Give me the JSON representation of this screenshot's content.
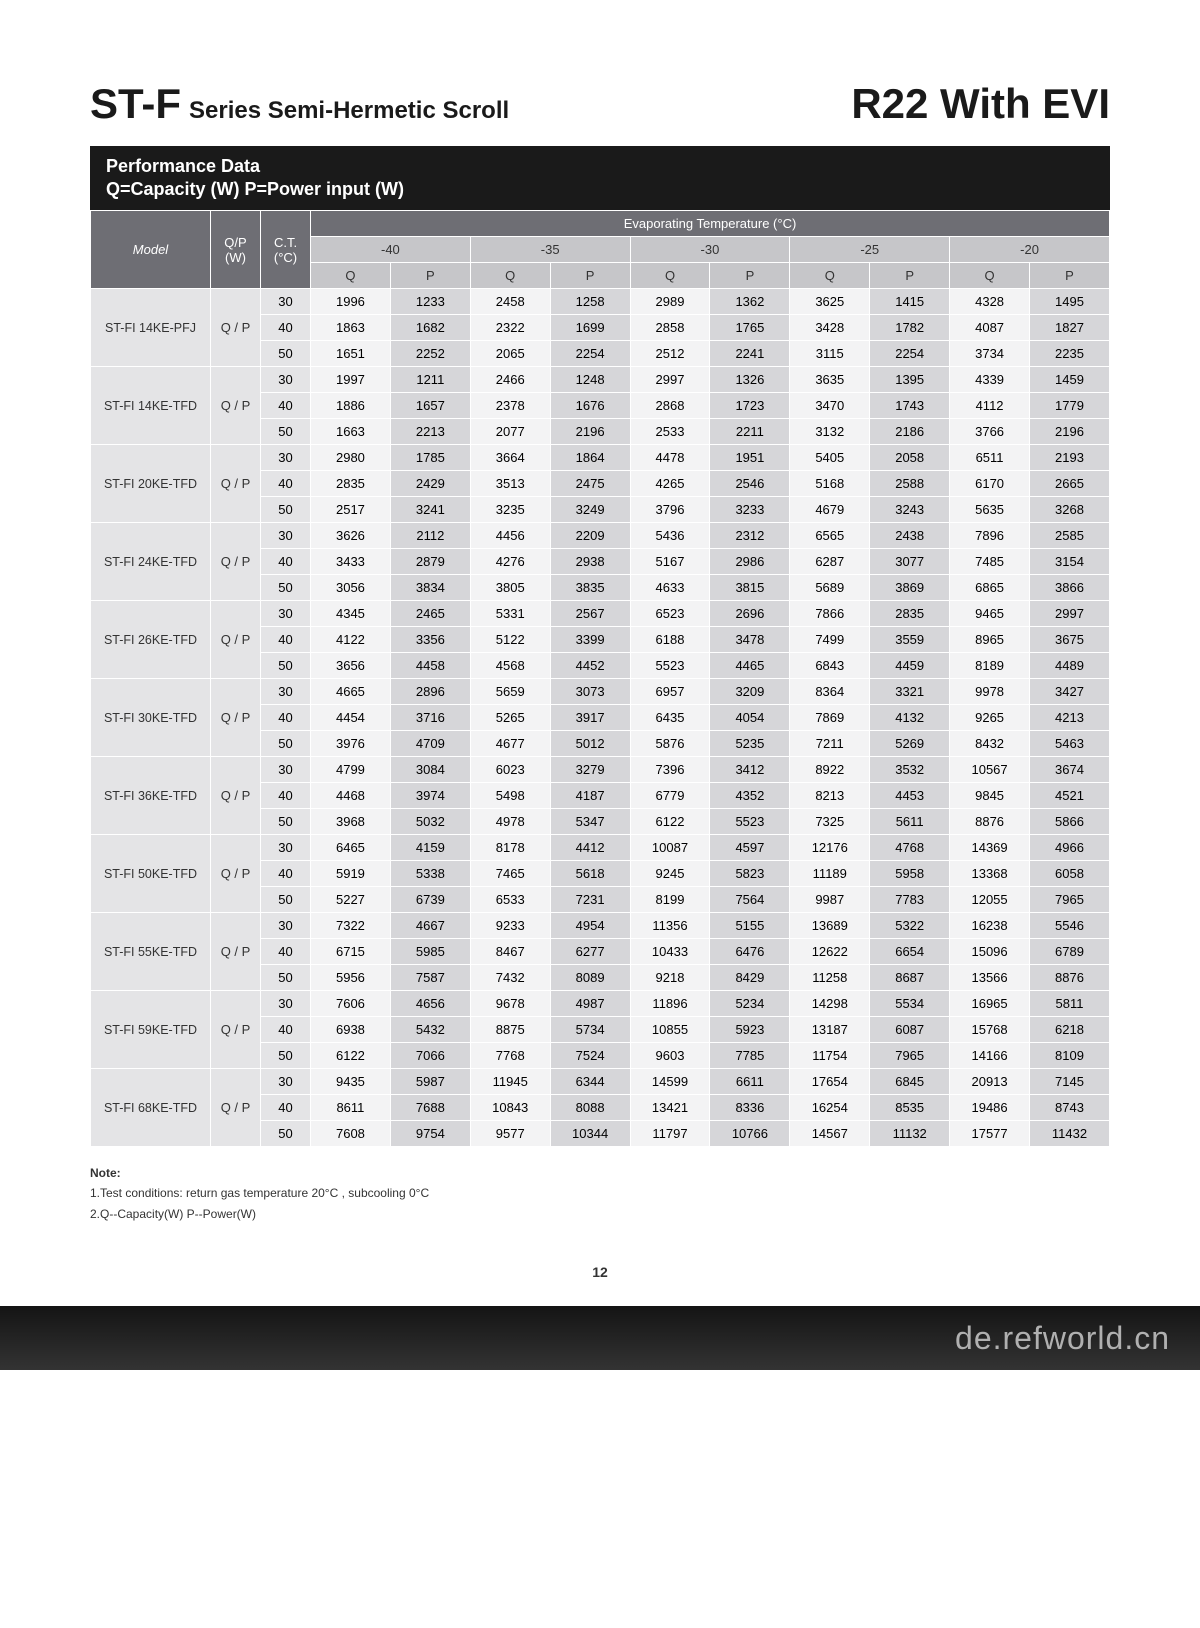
{
  "header": {
    "title_prefix": "ST-F",
    "title_suffix": "Series Semi-Hermetic Scroll",
    "title_right": "R22 With EVI"
  },
  "bar": {
    "line1": "Performance Data",
    "line2": "Q=Capacity (W) P=Power input (W)"
  },
  "table": {
    "model_header": "Model",
    "qp_header": "Q/P\n(W)",
    "ct_header": "C.T.\n(°C)",
    "evap_header": "Evaporating Temperature (°C)",
    "temps": [
      "-40",
      "-35",
      "-30",
      "-25",
      "-20"
    ],
    "qp_sub": [
      "Q",
      "P"
    ],
    "ct_values": [
      "30",
      "40",
      "50"
    ],
    "qp_cell": "Q / P",
    "models": [
      {
        "name": "ST-FI 14KE-PFJ",
        "rows": [
          [
            1996,
            1233,
            2458,
            1258,
            2989,
            1362,
            3625,
            1415,
            4328,
            1495
          ],
          [
            1863,
            1682,
            2322,
            1699,
            2858,
            1765,
            3428,
            1782,
            4087,
            1827
          ],
          [
            1651,
            2252,
            2065,
            2254,
            2512,
            2241,
            3115,
            2254,
            3734,
            2235
          ]
        ]
      },
      {
        "name": "ST-FI 14KE-TFD",
        "rows": [
          [
            1997,
            1211,
            2466,
            1248,
            2997,
            1326,
            3635,
            1395,
            4339,
            1459
          ],
          [
            1886,
            1657,
            2378,
            1676,
            2868,
            1723,
            3470,
            1743,
            4112,
            1779
          ],
          [
            1663,
            2213,
            2077,
            2196,
            2533,
            2211,
            3132,
            2186,
            3766,
            2196
          ]
        ]
      },
      {
        "name": "ST-FI 20KE-TFD",
        "rows": [
          [
            2980,
            1785,
            3664,
            1864,
            4478,
            1951,
            5405,
            2058,
            6511,
            2193
          ],
          [
            2835,
            2429,
            3513,
            2475,
            4265,
            2546,
            5168,
            2588,
            6170,
            2665
          ],
          [
            2517,
            3241,
            3235,
            3249,
            3796,
            3233,
            4679,
            3243,
            5635,
            3268
          ]
        ]
      },
      {
        "name": "ST-FI 24KE-TFD",
        "rows": [
          [
            3626,
            2112,
            4456,
            2209,
            5436,
            2312,
            6565,
            2438,
            7896,
            2585
          ],
          [
            3433,
            2879,
            4276,
            2938,
            5167,
            2986,
            6287,
            3077,
            7485,
            3154
          ],
          [
            3056,
            3834,
            3805,
            3835,
            4633,
            3815,
            5689,
            3869,
            6865,
            3866
          ]
        ]
      },
      {
        "name": "ST-FI 26KE-TFD",
        "rows": [
          [
            4345,
            2465,
            5331,
            2567,
            6523,
            2696,
            7866,
            2835,
            9465,
            2997
          ],
          [
            4122,
            3356,
            5122,
            3399,
            6188,
            3478,
            7499,
            3559,
            8965,
            3675
          ],
          [
            3656,
            4458,
            4568,
            4452,
            5523,
            4465,
            6843,
            4459,
            8189,
            4489
          ]
        ]
      },
      {
        "name": "ST-FI 30KE-TFD",
        "rows": [
          [
            4665,
            2896,
            5659,
            3073,
            6957,
            3209,
            8364,
            3321,
            9978,
            3427
          ],
          [
            4454,
            3716,
            5265,
            3917,
            6435,
            4054,
            7869,
            4132,
            9265,
            4213
          ],
          [
            3976,
            4709,
            4677,
            5012,
            5876,
            5235,
            7211,
            5269,
            8432,
            5463
          ]
        ]
      },
      {
        "name": "ST-FI 36KE-TFD",
        "rows": [
          [
            4799,
            3084,
            6023,
            3279,
            7396,
            3412,
            8922,
            3532,
            10567,
            3674
          ],
          [
            4468,
            3974,
            5498,
            4187,
            6779,
            4352,
            8213,
            4453,
            9845,
            4521
          ],
          [
            3968,
            5032,
            4978,
            5347,
            6122,
            5523,
            7325,
            5611,
            8876,
            5866
          ]
        ]
      },
      {
        "name": "ST-FI 50KE-TFD",
        "rows": [
          [
            6465,
            4159,
            8178,
            4412,
            10087,
            4597,
            12176,
            4768,
            14369,
            4966
          ],
          [
            5919,
            5338,
            7465,
            5618,
            9245,
            5823,
            11189,
            5958,
            13368,
            6058
          ],
          [
            5227,
            6739,
            6533,
            7231,
            8199,
            7564,
            9987,
            7783,
            12055,
            7965
          ]
        ]
      },
      {
        "name": "ST-FI 55KE-TFD",
        "rows": [
          [
            7322,
            4667,
            9233,
            4954,
            11356,
            5155,
            13689,
            5322,
            16238,
            5546
          ],
          [
            6715,
            5985,
            8467,
            6277,
            10433,
            6476,
            12622,
            6654,
            15096,
            6789
          ],
          [
            5956,
            7587,
            7432,
            8089,
            9218,
            8429,
            11258,
            8687,
            13566,
            8876
          ]
        ]
      },
      {
        "name": "ST-FI 59KE-TFD",
        "rows": [
          [
            7606,
            4656,
            9678,
            4987,
            11896,
            5234,
            14298,
            5534,
            16965,
            5811
          ],
          [
            6938,
            5432,
            8875,
            5734,
            10855,
            5923,
            13187,
            6087,
            15768,
            6218
          ],
          [
            6122,
            7066,
            7768,
            7524,
            9603,
            7785,
            11754,
            7965,
            14166,
            8109
          ]
        ]
      },
      {
        "name": "ST-FI 68KE-TFD",
        "rows": [
          [
            9435,
            5987,
            11945,
            6344,
            14599,
            6611,
            17654,
            6845,
            20913,
            7145
          ],
          [
            8611,
            7688,
            10843,
            8088,
            13421,
            8336,
            16254,
            8535,
            19486,
            8743
          ],
          [
            7608,
            9754,
            9577,
            10344,
            11797,
            10766,
            14567,
            11132,
            17577,
            11432
          ]
        ]
      }
    ]
  },
  "notes": {
    "title": "Note:",
    "items": [
      "1.Test conditions: return gas temperature 20°C , subcooling 0°C",
      "2.Q--Capacity(W) P--Power(W)"
    ]
  },
  "page_number": "12",
  "footer_url": "de.refworld.cn"
}
